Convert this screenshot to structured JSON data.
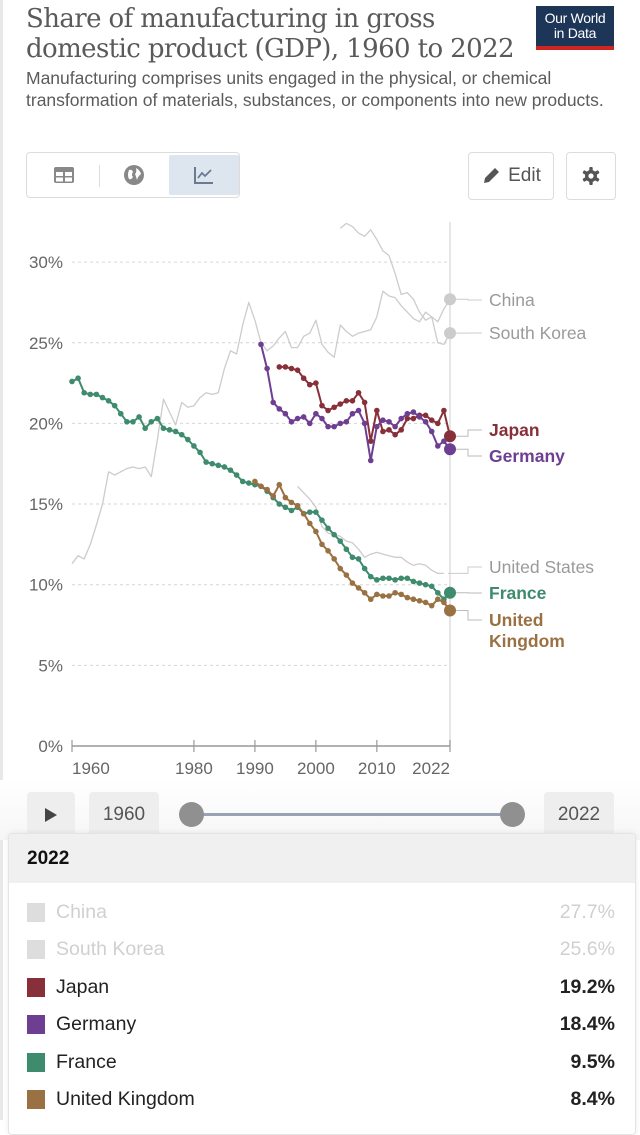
{
  "header": {
    "title": "Share of manufacturing in gross domestic product (GDP), 1960 to 2022",
    "subtitle": "Manufacturing comprises units engaged in the physical, or chemical transformation of materials, substances, or components into new products.",
    "logo_line1": "Our World",
    "logo_line2": "in Data"
  },
  "toolbar": {
    "tabs": [
      {
        "name": "table",
        "icon": "table-icon",
        "active": false
      },
      {
        "name": "map",
        "icon": "globe-icon",
        "active": false
      },
      {
        "name": "chart",
        "icon": "line-chart-icon",
        "active": true
      }
    ],
    "edit_label": "Edit",
    "settings_icon": "gear-icon"
  },
  "timeline": {
    "play_icon": "play-icon",
    "start_year": "1960",
    "end_year": "2022",
    "start_fraction": 0,
    "end_fraction": 1
  },
  "tooltip": {
    "year": "2022",
    "rows": [
      {
        "name": "China",
        "value": "27.7%",
        "muted": true
      },
      {
        "name": "South Korea",
        "value": "25.6%",
        "muted": true
      },
      {
        "name": "Japan",
        "value": "19.2%",
        "muted": false
      },
      {
        "name": "Germany",
        "value": "18.4%",
        "muted": false
      },
      {
        "name": "France",
        "value": "9.5%",
        "muted": false
      },
      {
        "name": "United Kingdom",
        "value": "8.4%",
        "muted": false
      }
    ]
  },
  "chart_data": {
    "type": "line",
    "title": "Share of manufacturing in gross domestic product (GDP), 1960 to 2022",
    "xlabel": "",
    "ylabel": "",
    "xlim": [
      1960,
      2022
    ],
    "ylim": [
      0,
      32
    ],
    "x_ticks": [
      "1960",
      "1980",
      "1990",
      "2000",
      "2010",
      "2022"
    ],
    "x_tick_values": [
      1960,
      1980,
      1990,
      2000,
      2010,
      2022
    ],
    "y_ticks": [
      "0%",
      "5%",
      "10%",
      "15%",
      "20%",
      "25%",
      "30%"
    ],
    "y_tick_values": [
      0,
      5,
      10,
      15,
      20,
      25,
      30
    ],
    "grid": "horizontal-dashed",
    "legend": "right-end-labels",
    "series": [
      {
        "name": "China",
        "label": "China",
        "color": "#cccccc",
        "muted": true,
        "markers": false,
        "start": 2004,
        "values": [
          32.1,
          32.4,
          32.2,
          31.8,
          31.6,
          32.0,
          31.4,
          30.7,
          30.4,
          29.3,
          28.0,
          28.1,
          27.7,
          26.9,
          26.4,
          26.6,
          26.3,
          27.1,
          27.7
        ]
      },
      {
        "name": "South Korea",
        "label": "South Korea",
        "color": "#cccccc",
        "muted": true,
        "markers": false,
        "start": 1960,
        "values": [
          11.3,
          11.8,
          11.6,
          12.5,
          13.7,
          15.0,
          17.0,
          16.8,
          17.0,
          17.2,
          17.3,
          17.2,
          17.3,
          16.7,
          19.0,
          21.5,
          20.7,
          19.9,
          21.3,
          21.0,
          21.1,
          21.6,
          21.9,
          21.8,
          21.9,
          23.4,
          24.5,
          24.3,
          26.1,
          27.5,
          26.4,
          25.0,
          24.5,
          24.8,
          25.3,
          25.7,
          24.7,
          24.7,
          25.4,
          25.6,
          26.4,
          24.9,
          24.4,
          24.1,
          26.1,
          25.7,
          25.4,
          25.6,
          25.7,
          25.8,
          26.6,
          28.2,
          27.9,
          27.8,
          27.3,
          26.9,
          26.5,
          26.3,
          26.9,
          26.6,
          25.0,
          24.9,
          25.6
        ]
      },
      {
        "name": "United States",
        "label": "United States",
        "color": "#cccccc",
        "muted": true,
        "markers": false,
        "start": 1997,
        "values": [
          16.1,
          15.7,
          15.3,
          14.8,
          13.6,
          13.2,
          13.1,
          13.0,
          12.7,
          12.6,
          12.2,
          11.7,
          11.9,
          12.0,
          11.9,
          11.8,
          11.7,
          11.7,
          11.4,
          11.2,
          11.3,
          11.2,
          10.9,
          10.7,
          10.7
        ]
      },
      {
        "name": "Japan",
        "label": "Japan",
        "color": "#883039",
        "muted": false,
        "markers": true,
        "start": 1994,
        "values": [
          23.5,
          23.5,
          23.4,
          23.3,
          22.8,
          22.4,
          22.5,
          21.1,
          20.8,
          21.0,
          21.2,
          21.4,
          21.4,
          21.9,
          21.3,
          18.9,
          20.8,
          19.5,
          19.6,
          19.3,
          19.6,
          20.3,
          20.3,
          20.5,
          20.5,
          20.2,
          20.0,
          20.8,
          19.2
        ]
      },
      {
        "name": "Germany",
        "label": "Germany",
        "color": "#6d3e91",
        "muted": false,
        "markers": true,
        "start": 1991,
        "values": [
          24.9,
          23.4,
          21.3,
          20.9,
          20.6,
          20.1,
          20.3,
          20.4,
          20.0,
          20.6,
          20.3,
          19.8,
          19.8,
          20.0,
          20.1,
          20.6,
          20.8,
          20.0,
          17.7,
          19.8,
          20.2,
          20.1,
          19.8,
          20.3,
          20.6,
          20.7,
          20.4,
          20.1,
          19.5,
          18.6,
          18.9,
          18.4
        ]
      },
      {
        "name": "France",
        "label": "France",
        "color": "#3e8b6e",
        "muted": false,
        "markers": true,
        "start": 1960,
        "values": [
          22.6,
          22.8,
          21.9,
          21.8,
          21.8,
          21.6,
          21.4,
          21.1,
          20.6,
          20.1,
          20.1,
          20.4,
          19.7,
          20.1,
          20.3,
          19.7,
          19.6,
          19.5,
          19.3,
          19.0,
          18.6,
          18.2,
          17.6,
          17.5,
          17.4,
          17.3,
          17.1,
          16.8,
          16.4,
          16.3,
          16.2,
          16.1,
          15.8,
          15.4,
          15.0,
          14.8,
          14.6,
          14.8,
          14.4,
          14.5,
          14.5,
          14.0,
          13.5,
          13.1,
          12.7,
          12.2,
          11.7,
          11.6,
          11.0,
          10.5,
          10.3,
          10.4,
          10.4,
          10.3,
          10.4,
          10.4,
          10.2,
          10.1,
          10.0,
          9.9,
          9.5,
          9.1,
          9.5
        ]
      },
      {
        "name": "United Kingdom",
        "label": "United Kingdom",
        "color": "#9a7142",
        "muted": false,
        "markers": true,
        "start": 1990,
        "values": [
          16.4,
          16.1,
          15.9,
          15.5,
          16.2,
          15.4,
          15.1,
          14.9,
          14.4,
          13.8,
          13.3,
          12.5,
          12.1,
          11.6,
          11.0,
          10.6,
          10.1,
          9.8,
          9.5,
          9.1,
          9.4,
          9.3,
          9.3,
          9.5,
          9.4,
          9.2,
          9.1,
          9.0,
          8.9,
          8.7,
          9.1,
          8.9,
          8.4
        ]
      }
    ]
  }
}
